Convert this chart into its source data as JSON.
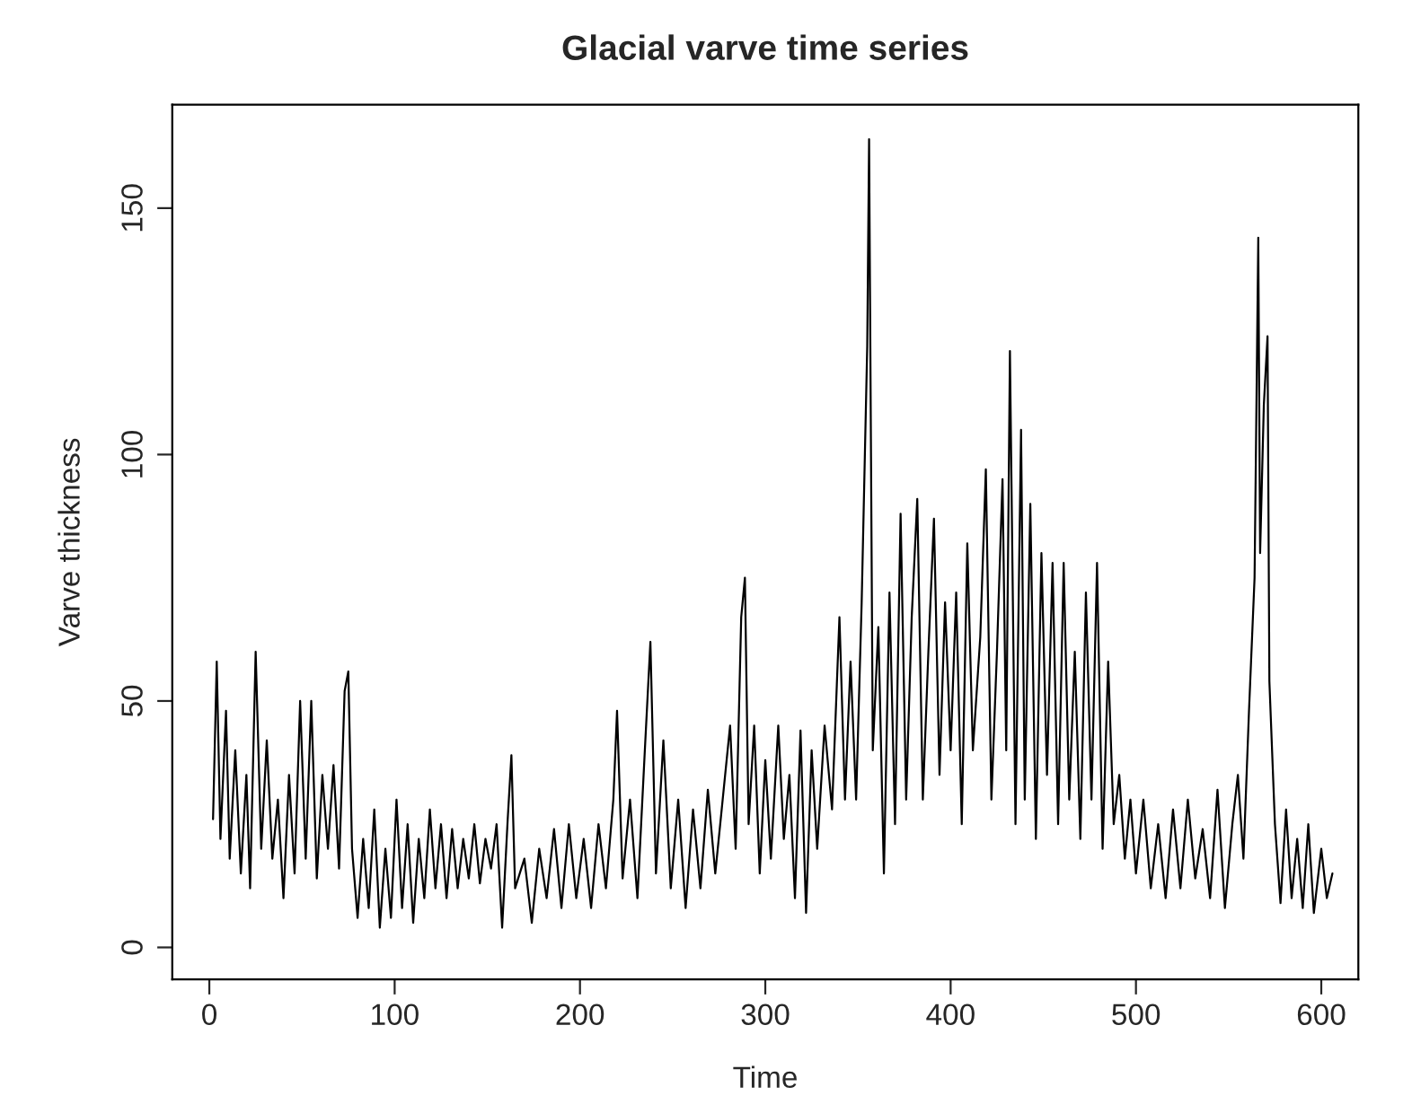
{
  "chart_data": {
    "type": "line",
    "title": "Glacial varve time series",
    "xlabel": "Time",
    "ylabel": "Varve thickness",
    "xlim": [
      -20,
      620
    ],
    "ylim": [
      -6.5,
      171
    ],
    "xticks": [
      0,
      100,
      200,
      300,
      400,
      500,
      600
    ],
    "yticks": [
      0,
      50,
      100,
      150
    ],
    "grid": false,
    "legend": false,
    "marker": "none",
    "line_style": "solid",
    "series": [
      {
        "color": "#000000",
        "x": [
          2,
          4,
          6,
          9,
          11,
          14,
          17,
          20,
          22,
          25,
          28,
          31,
          34,
          37,
          40,
          43,
          46,
          49,
          52,
          55,
          58,
          61,
          64,
          67,
          70,
          73,
          75,
          77,
          80,
          83,
          86,
          89,
          92,
          95,
          98,
          101,
          104,
          107,
          110,
          113,
          116,
          119,
          122,
          125,
          128,
          131,
          134,
          137,
          140,
          143,
          146,
          149,
          152,
          155,
          158,
          161,
          163,
          165,
          170,
          174,
          178,
          182,
          186,
          190,
          194,
          198,
          202,
          206,
          210,
          214,
          218,
          220,
          223,
          227,
          231,
          235,
          238,
          241,
          245,
          249,
          253,
          257,
          261,
          265,
          269,
          273,
          277,
          281,
          284,
          287,
          289,
          291,
          294,
          297,
          300,
          303,
          307,
          310,
          313,
          316,
          319,
          322,
          325,
          328,
          332,
          336,
          340,
          343,
          346,
          349,
          352,
          355,
          356,
          358,
          361,
          364,
          367,
          370,
          373,
          376,
          379,
          382,
          385,
          388,
          391,
          394,
          397,
          400,
          403,
          406,
          409,
          412,
          416,
          419,
          422,
          425,
          428,
          430,
          432,
          435,
          438,
          440,
          443,
          446,
          449,
          452,
          455,
          458,
          461,
          464,
          467,
          470,
          473,
          476,
          479,
          482,
          485,
          488,
          491,
          494,
          497,
          500,
          504,
          508,
          512,
          516,
          520,
          524,
          528,
          532,
          536,
          540,
          544,
          548,
          552,
          555,
          558,
          561,
          564,
          566,
          567,
          569,
          571,
          572,
          575,
          578,
          581,
          584,
          587,
          590,
          593,
          596,
          600,
          603,
          606
        ],
        "values": [
          26,
          58,
          22,
          48,
          18,
          40,
          15,
          35,
          12,
          60,
          20,
          42,
          18,
          30,
          10,
          35,
          15,
          50,
          18,
          50,
          14,
          35,
          20,
          37,
          16,
          52,
          56,
          20,
          6,
          22,
          8,
          28,
          4,
          20,
          6,
          30,
          8,
          25,
          5,
          22,
          10,
          28,
          12,
          25,
          10,
          24,
          12,
          22,
          14,
          25,
          13,
          22,
          16,
          25,
          4,
          26,
          39,
          12,
          18,
          5,
          20,
          10,
          24,
          8,
          25,
          10,
          22,
          8,
          25,
          12,
          30,
          48,
          14,
          30,
          10,
          40,
          62,
          15,
          42,
          12,
          30,
          8,
          28,
          12,
          32,
          15,
          30,
          45,
          20,
          67,
          75,
          25,
          45,
          15,
          38,
          18,
          45,
          22,
          35,
          10,
          44,
          7,
          40,
          20,
          45,
          28,
          67,
          30,
          58,
          30,
          70,
          122,
          164,
          40,
          65,
          15,
          72,
          25,
          88,
          30,
          67,
          91,
          30,
          60,
          87,
          35,
          70,
          40,
          72,
          25,
          82,
          40,
          63,
          97,
          30,
          60,
          95,
          40,
          121,
          25,
          105,
          30,
          90,
          22,
          80,
          35,
          78,
          25,
          78,
          30,
          60,
          22,
          72,
          30,
          78,
          20,
          58,
          25,
          35,
          18,
          30,
          15,
          30,
          12,
          25,
          10,
          28,
          12,
          30,
          14,
          24,
          10,
          32,
          8,
          25,
          35,
          18,
          48,
          75,
          144,
          80,
          110,
          124,
          54,
          25,
          9,
          28,
          10,
          22,
          8,
          25,
          7,
          20,
          10,
          15
        ]
      }
    ]
  }
}
